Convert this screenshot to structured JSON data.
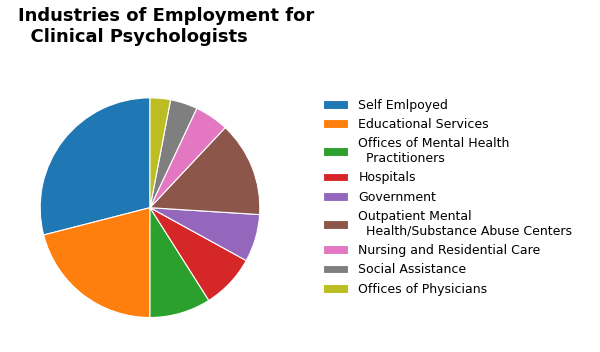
{
  "chart_data": {
    "type": "pie",
    "title": "Industries of Employment for\n  Clinical Psychologists",
    "categories": [
      "Self Emlpoyed",
      "Educational Services",
      "Offices of Mental Health\n  Practitioners",
      "Hospitals",
      "Government",
      "Outpatient Mental\n  Health/Substance Abuse Centers",
      "Nursing and Residential Care",
      "Social Assistance",
      "Offices of Physicians"
    ],
    "values": [
      29,
      21,
      9,
      8,
      7,
      14,
      5,
      4,
      3
    ],
    "legend": "center left"
  }
}
